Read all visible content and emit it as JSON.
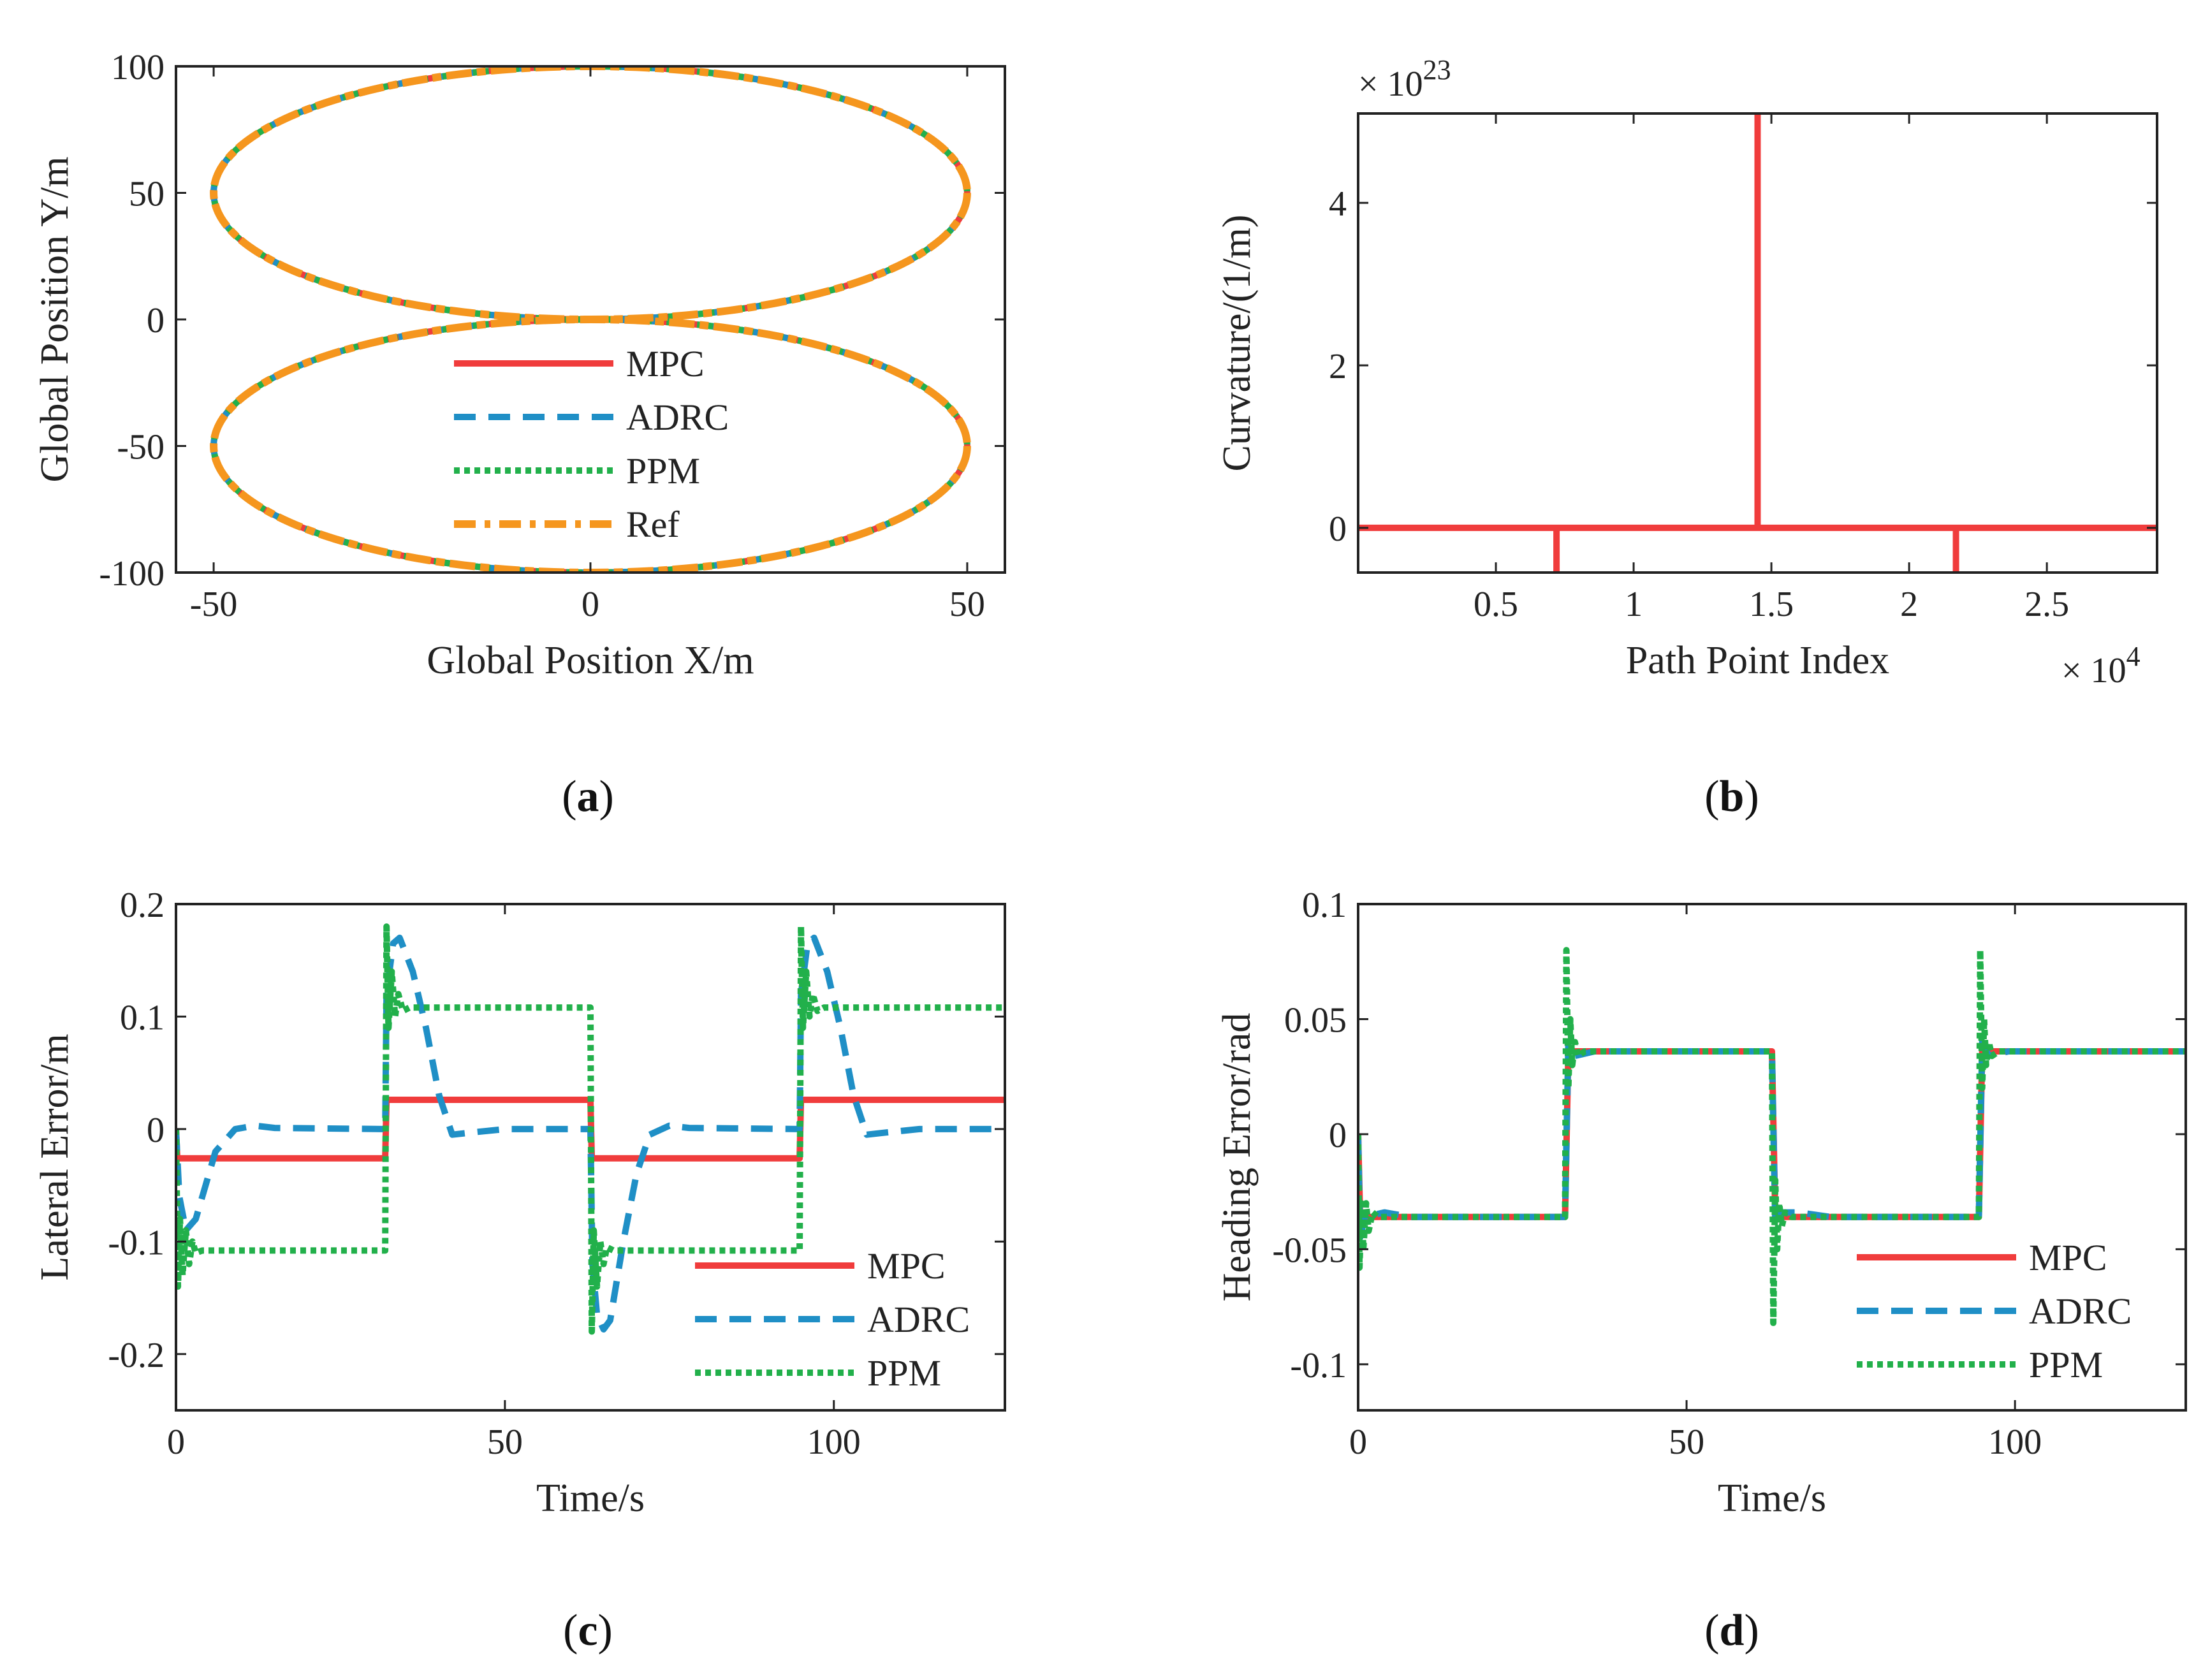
{
  "colors": {
    "mpc": "#f03c3c",
    "adrc": "#1f8fc6",
    "ppm": "#22b04b",
    "ref": "#f5961e",
    "axis": "#222222"
  },
  "chart_data": [
    {
      "id": "a",
      "caption": "a",
      "type": "line",
      "xlabel": "Global Position X/m",
      "ylabel": "Global Position Y/m",
      "xlim": [
        -55,
        55
      ],
      "ylim": [
        -100,
        100
      ],
      "xticks": [
        -50,
        0,
        50
      ],
      "xtick_labels": [
        "-50",
        "0",
        "50"
      ],
      "yticks": [
        -100,
        -50,
        0,
        50,
        100
      ],
      "ytick_labels": [
        "-100",
        "-50",
        "0",
        "50",
        "100"
      ],
      "shape": {
        "kind": "figure-eight of two ellipses",
        "center_x": 0,
        "ellipse_centers_y": [
          50,
          -50
        ],
        "semi_axis_x": 50,
        "semi_axis_y": 50
      },
      "legend": [
        "MPC",
        "ADRC",
        "PPM",
        "Ref"
      ],
      "legend_position": "lower-center",
      "series": [
        {
          "name": "MPC",
          "style": "solid"
        },
        {
          "name": "ADRC",
          "style": "dashed"
        },
        {
          "name": "PPM",
          "style": "dotted"
        },
        {
          "name": "Ref",
          "style": "dash-dot"
        }
      ]
    },
    {
      "id": "b",
      "caption": "b",
      "type": "line",
      "xlabel": "Path Point Index",
      "ylabel": "Curvature/(1/m)",
      "x_multiplier": "× 10",
      "x_multiplier_exp": "4",
      "y_multiplier": "× 10",
      "y_multiplier_exp": "23",
      "xlim": [
        0,
        2.9
      ],
      "ylim": [
        -0.55,
        5.1
      ],
      "xticks": [
        0.5,
        1,
        1.5,
        2,
        2.5
      ],
      "xtick_labels": [
        "0.5",
        "1",
        "1.5",
        "2",
        "2.5"
      ],
      "yticks": [
        0,
        2,
        4
      ],
      "ytick_labels": [
        "0",
        "2",
        "4"
      ],
      "series": [
        {
          "name": "Curvature",
          "x": [
            0,
            0.72,
            0.72,
            0.72,
            1.45,
            1.45,
            1.45,
            2.17,
            2.17,
            2.17,
            2.9
          ],
          "y": [
            0,
            0,
            -0.55,
            0,
            0,
            5.1,
            0,
            0,
            -0.55,
            0,
            0
          ]
        }
      ]
    },
    {
      "id": "c",
      "caption": "c",
      "type": "line",
      "xlabel": "Time/s",
      "ylabel": "Lateral Error/m",
      "xlim": [
        0,
        126
      ],
      "ylim": [
        -0.25,
        0.2
      ],
      "xticks": [
        0,
        50,
        100
      ],
      "xtick_labels": [
        "0",
        "50",
        "100"
      ],
      "yticks": [
        -0.2,
        -0.1,
        0,
        0.1,
        0.2
      ],
      "ytick_labels": [
        "-0.2",
        "-0.1",
        "0",
        "0.1",
        "0.2"
      ],
      "legend": [
        "MPC",
        "ADRC",
        "PPM"
      ],
      "legend_position": "lower-right",
      "series": [
        {
          "name": "MPC",
          "style": "solid",
          "x": [
            0,
            0.2,
            31.8,
            32,
            63,
            63.2,
            94.8,
            95,
            126
          ],
          "y": [
            0,
            -0.026,
            -0.026,
            0.026,
            0.026,
            -0.026,
            -0.026,
            0.026,
            0.026
          ]
        },
        {
          "name": "ADRC",
          "style": "dashed",
          "x": [
            0,
            0.5,
            1.5,
            3,
            6,
            9,
            12,
            15,
            31.8,
            32,
            33,
            34,
            36,
            38,
            40,
            42,
            45,
            50,
            63,
            63.3,
            64,
            65,
            66,
            68,
            70,
            72,
            75,
            78,
            94.8,
            95,
            96,
            97,
            99,
            101,
            103,
            105,
            108,
            113,
            126
          ],
          "y": [
            0,
            -0.06,
            -0.09,
            -0.08,
            -0.02,
            0,
            0.003,
            0.001,
            0,
            0.12,
            0.165,
            0.17,
            0.14,
            0.09,
            0.03,
            -0.005,
            -0.003,
            0,
            0,
            -0.12,
            -0.165,
            -0.178,
            -0.17,
            -0.1,
            -0.04,
            -0.005,
            0.003,
            0.001,
            0,
            0.12,
            0.165,
            0.17,
            0.14,
            0.09,
            0.03,
            -0.005,
            -0.003,
            0,
            0
          ]
        },
        {
          "name": "PPM",
          "style": "dotted",
          "x": [
            0,
            0.3,
            0.6,
            1,
            1.5,
            2,
            2.5,
            3,
            4,
            31.8,
            32,
            32.3,
            32.8,
            33.3,
            33.8,
            34.5,
            35.5,
            63,
            63.2,
            63.5,
            64,
            64.5,
            65,
            65.5,
            66.5,
            94.8,
            95,
            95.3,
            95.8,
            96.3,
            96.8,
            97.5,
            98.5,
            126
          ],
          "y": [
            0,
            -0.14,
            -0.08,
            -0.13,
            -0.09,
            -0.12,
            -0.1,
            -0.11,
            -0.108,
            -0.108,
            0.18,
            0.09,
            0.14,
            0.1,
            0.12,
            0.105,
            0.108,
            0.108,
            -0.18,
            -0.09,
            -0.14,
            -0.1,
            -0.12,
            -0.105,
            -0.108,
            -0.108,
            0.18,
            0.09,
            0.14,
            0.1,
            0.12,
            0.105,
            0.108,
            0.108
          ]
        }
      ]
    },
    {
      "id": "d",
      "caption": "d",
      "type": "line",
      "xlabel": "Time/s",
      "ylabel": "Heading Error/rad",
      "xlim": [
        0,
        126
      ],
      "ylim": [
        -0.12,
        0.1
      ],
      "xticks": [
        0,
        50,
        100
      ],
      "xtick_labels": [
        "0",
        "50",
        "100"
      ],
      "yticks": [
        -0.1,
        -0.05,
        0,
        0.05,
        0.1
      ],
      "ytick_labels": [
        "-0.1",
        "-0.05",
        "0",
        "0.05",
        "0.1"
      ],
      "legend": [
        "MPC",
        "ADRC",
        "PPM"
      ],
      "legend_position": "lower-right",
      "series": [
        {
          "name": "MPC",
          "style": "solid",
          "x": [
            0,
            0.3,
            1,
            31.5,
            32,
            63,
            63.5,
            94.5,
            95,
            126
          ],
          "y": [
            0,
            -0.036,
            -0.036,
            -0.036,
            0.036,
            0.036,
            -0.036,
            -0.036,
            0.036,
            0.036
          ]
        },
        {
          "name": "ADRC",
          "style": "dashed",
          "x": [
            0,
            0.3,
            1,
            4,
            8,
            31.5,
            32,
            33,
            36,
            63,
            63.5,
            64.5,
            67,
            72,
            94.5,
            95,
            96,
            99,
            126
          ],
          "y": [
            0,
            -0.045,
            -0.036,
            -0.034,
            -0.036,
            -0.036,
            0.04,
            0.034,
            0.036,
            0.036,
            -0.04,
            -0.034,
            -0.034,
            -0.036,
            -0.036,
            0.04,
            0.034,
            0.036,
            0.036
          ]
        },
        {
          "name": "PPM",
          "style": "dotted",
          "x": [
            0,
            0.2,
            0.5,
            0.8,
            1.2,
            1.6,
            2.2,
            3,
            31.5,
            31.7,
            32,
            32.3,
            32.6,
            33,
            33.5,
            34.5,
            63,
            63.2,
            63.5,
            63.8,
            64.1,
            64.5,
            65,
            66,
            94.5,
            94.7,
            95,
            95.3,
            95.6,
            96,
            96.5,
            97.5,
            126
          ],
          "y": [
            0,
            -0.058,
            -0.03,
            -0.05,
            -0.03,
            -0.042,
            -0.034,
            -0.036,
            -0.036,
            0.08,
            0.02,
            0.05,
            0.03,
            0.04,
            0.034,
            0.036,
            0.036,
            -0.082,
            -0.02,
            -0.05,
            -0.03,
            -0.04,
            -0.034,
            -0.036,
            -0.036,
            0.08,
            0.02,
            0.05,
            0.03,
            0.04,
            0.034,
            0.036,
            0.036
          ]
        }
      ]
    }
  ]
}
